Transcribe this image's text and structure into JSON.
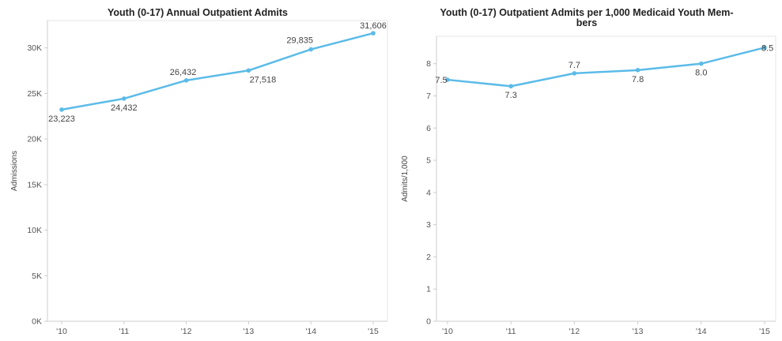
{
  "chart_data": [
    {
      "type": "line",
      "title": "Youth (0-17) Annual Outpatient Admits",
      "title_lines": [
        "Youth (0-17) Annual Outpatient Admits"
      ],
      "xlabel": "",
      "ylabel": "Admissions",
      "categories": [
        "'10",
        "'11",
        "'12",
        "'13",
        "'14",
        "'15"
      ],
      "series": [
        {
          "values": [
            23223,
            24432,
            26432,
            27518,
            29835,
            31606
          ],
          "labels": [
            "23,223",
            "24,432",
            "26,432",
            "27,518",
            "29,835",
            "31,606"
          ]
        }
      ],
      "ylim": [
        0,
        33000
      ],
      "yticks": [
        0,
        5000,
        10000,
        15000,
        20000,
        25000,
        30000
      ],
      "ytick_labels": [
        "0K",
        "5K",
        "10K",
        "15K",
        "20K",
        "25K",
        "30K"
      ],
      "grid": false,
      "color": "#5bbbe8"
    },
    {
      "type": "line",
      "title": "Youth (0-17) Outpatient Admits per 1,000 Medicaid Youth Mem-bers",
      "title_lines": [
        "Youth (0-17) Outpatient Admits per 1,000 Medicaid Youth Mem-",
        "bers"
      ],
      "xlabel": "",
      "ylabel": "Admits/1,000",
      "categories": [
        "'10",
        "'11",
        "'12",
        "'13",
        "'14",
        "'15"
      ],
      "series": [
        {
          "values": [
            7.5,
            7.3,
            7.7,
            7.8,
            8.0,
            8.5
          ],
          "labels": [
            "7.5",
            "7.3",
            "7.7",
            "7.8",
            "8.0",
            "8.5"
          ]
        }
      ],
      "ylim": [
        0,
        8.85
      ],
      "yticks": [
        0,
        1,
        2,
        3,
        4,
        5,
        6,
        7,
        8
      ],
      "ytick_labels": [
        "0",
        "1",
        "2",
        "3",
        "4",
        "5",
        "6",
        "7",
        "8"
      ],
      "grid": false,
      "color": "#5bbbe8"
    }
  ]
}
